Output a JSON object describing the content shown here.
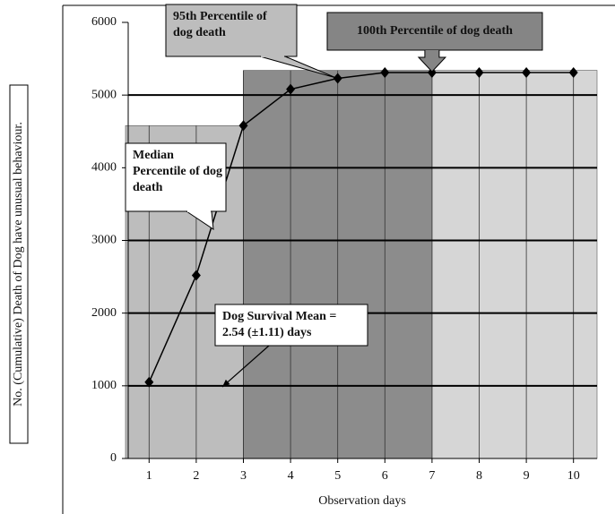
{
  "chart_data": {
    "type": "line",
    "x_label": "Observation days",
    "y_label": "No. (Cumulative) Death of Dog have unusual behaviour.",
    "x": [
      1,
      2,
      3,
      4,
      5,
      6,
      7,
      8,
      9,
      10
    ],
    "series": [
      {
        "color": "#000000",
        "values": [
          1050,
          2520,
          4580,
          5080,
          5230,
          5310,
          5310,
          5310,
          5310,
          5310
        ]
      }
    ],
    "xlim": [
      0.5,
      10.5
    ],
    "xticks": [
      1,
      2,
      3,
      4,
      5,
      6,
      7,
      8,
      9,
      10
    ],
    "ylim": [
      0,
      6000
    ],
    "yticks": [
      0,
      1000,
      2000,
      3000,
      4000,
      5000,
      6000
    ],
    "grid": true,
    "regions": [
      {
        "from": 0.5,
        "to": 3,
        "top": 4580,
        "color": "#bdbdbd"
      },
      {
        "from": 3,
        "to": 7,
        "top": 5340,
        "color": "#8c8c8c"
      },
      {
        "from": 7,
        "to": 10.5,
        "top": 5340,
        "color": "#d6d6d6"
      }
    ],
    "annotations": [
      {
        "lines": [
          "95th Percentile of",
          "dog death"
        ],
        "color": "#bdbdbd"
      },
      {
        "lines": [
          "100th Percentile of dog death"
        ],
        "color": "#858585"
      },
      {
        "lines": [
          "Median",
          "Percentile of dog",
          "death"
        ],
        "color": "#ffffff"
      },
      {
        "lines": [
          "Dog Survival Mean =",
          "2.54 (±1.11) days"
        ],
        "color": "#ffffff"
      }
    ]
  }
}
